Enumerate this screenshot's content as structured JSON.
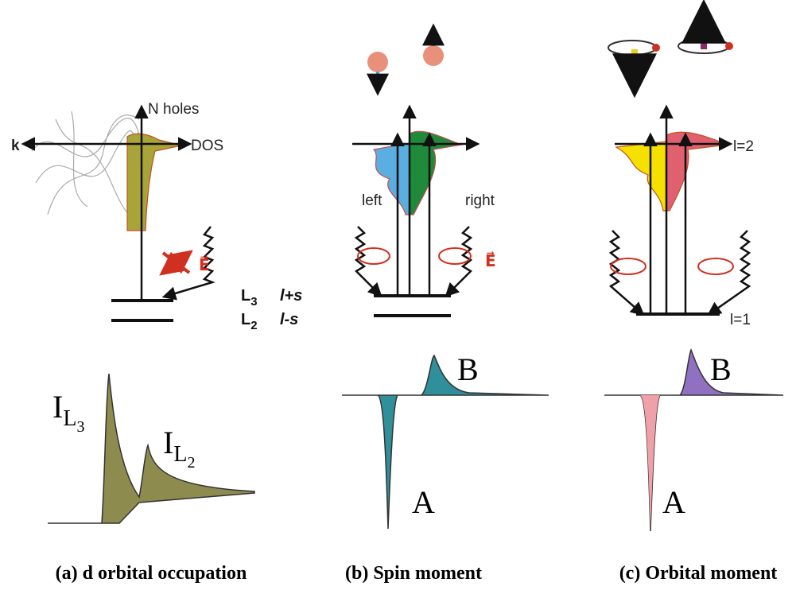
{
  "panels": [
    {
      "n_holes": "N holes",
      "k_axis": "k",
      "dos_axis": "DOS",
      "field": "E⃗"
    },
    {
      "left": "left",
      "right": "right",
      "field": "E⃗",
      "peak_b": "B",
      "peak_a": "A"
    },
    {
      "upper": "l=2",
      "lower": "l=1",
      "peak_b": "B",
      "peak_a": "A"
    }
  ],
  "levels": [
    {
      "name": "L",
      "sub": "3",
      "rule": "l+s"
    },
    {
      "name": "L",
      "sub": "2",
      "rule": "l-s"
    }
  ],
  "peaks_a": [
    {
      "main": "I",
      "sub": "L",
      "sub2": "3"
    },
    {
      "main": "I",
      "sub": "L",
      "sub2": "2"
    }
  ],
  "captions": [
    "(a) d orbital occupation",
    "(b) Spin moment",
    "(c) Orbital moment"
  ]
}
